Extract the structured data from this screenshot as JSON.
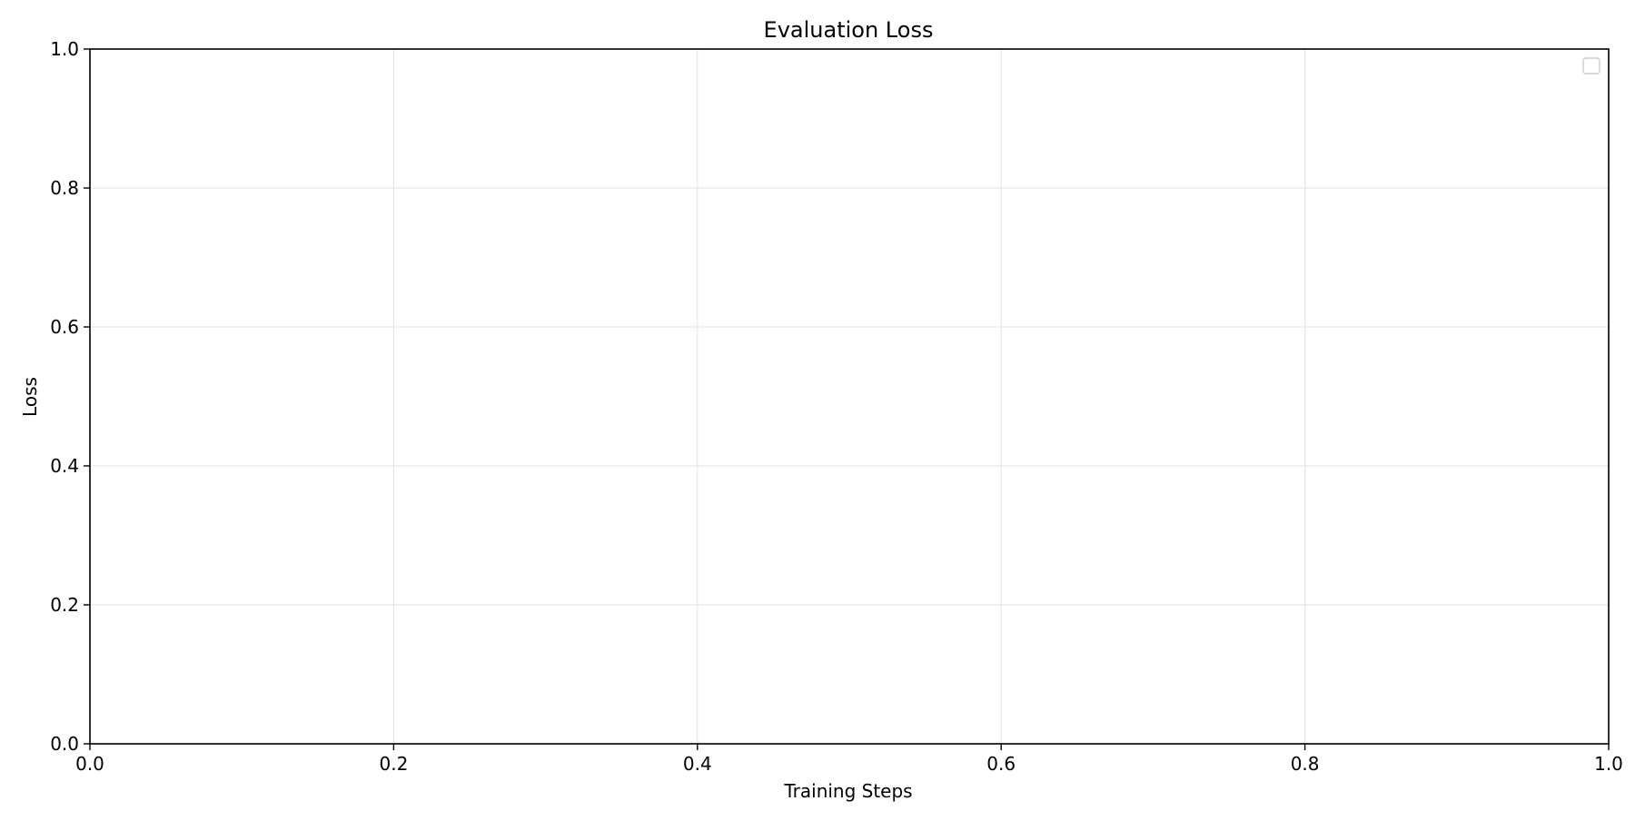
{
  "chart_data": {
    "type": "line",
    "title": "Evaluation Loss",
    "xlabel": "Training Steps",
    "ylabel": "Loss",
    "xlim": [
      0.0,
      1.0
    ],
    "ylim": [
      0.0,
      1.0
    ],
    "x_ticks": [
      "0.0",
      "0.2",
      "0.4",
      "0.6",
      "0.8",
      "1.0"
    ],
    "y_ticks": [
      "0.0",
      "0.2",
      "0.4",
      "0.6",
      "0.8",
      "1.0"
    ],
    "grid": true,
    "legend": {
      "position": "top-right",
      "entries": []
    },
    "series": []
  },
  "colors": {
    "grid": "#e6e6e6",
    "axes": "#000000",
    "legend_border": "#cccccc"
  }
}
